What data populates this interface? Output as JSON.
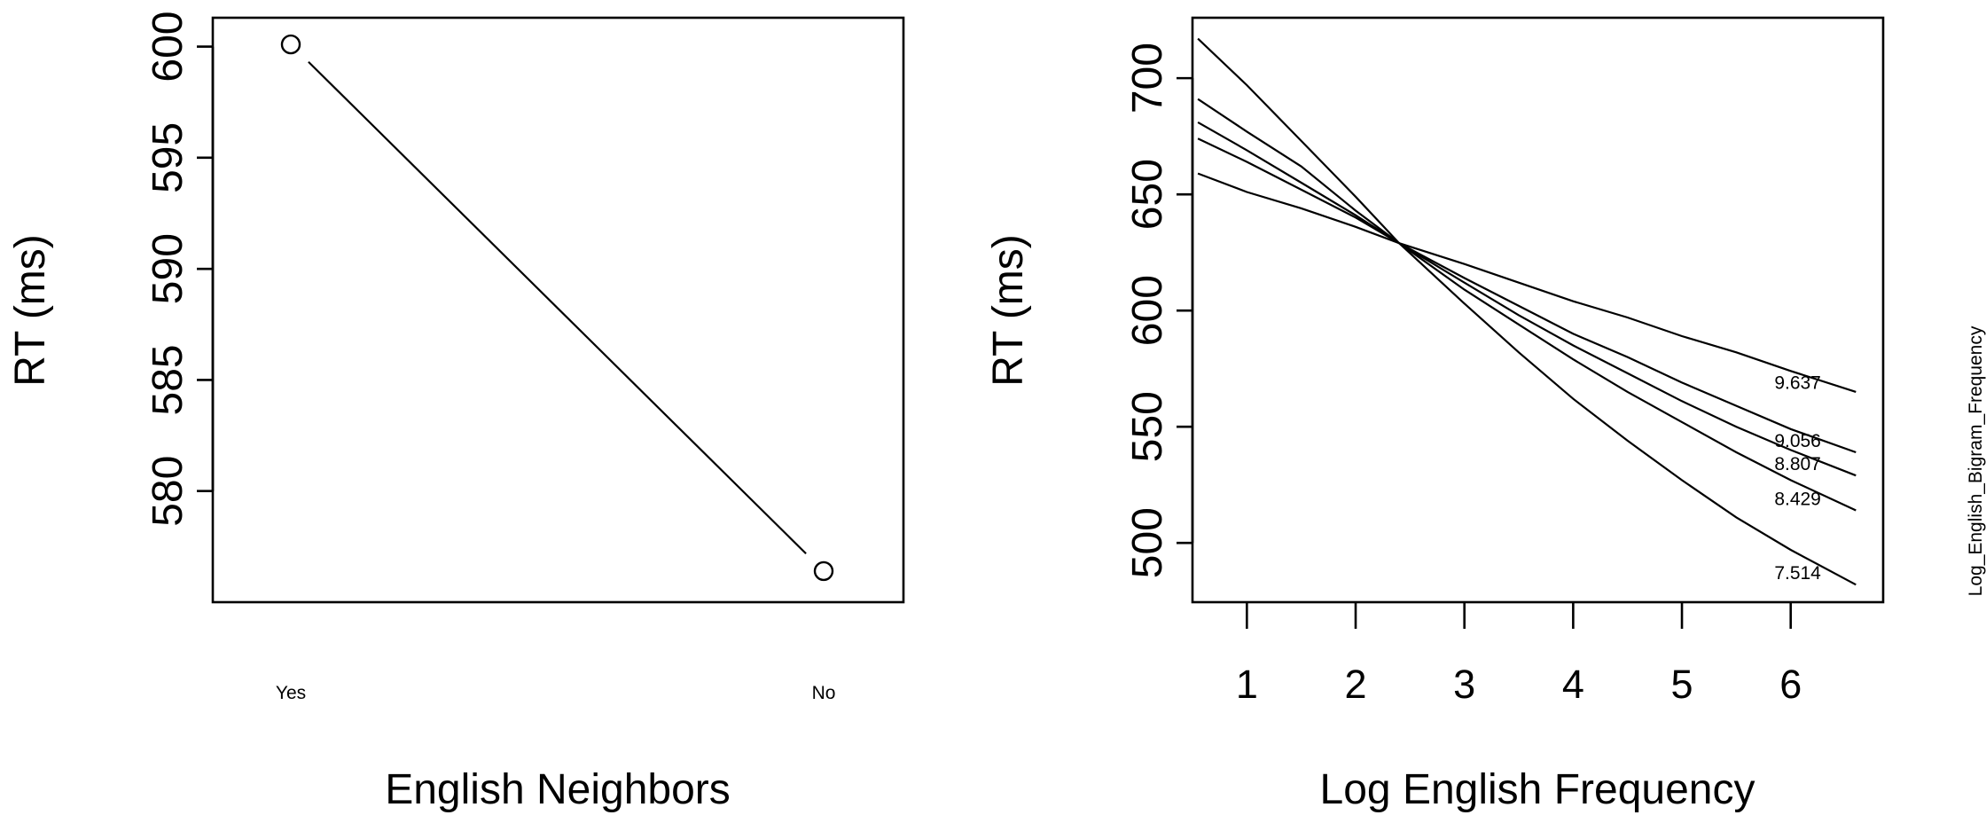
{
  "chart_data": [
    {
      "type": "line",
      "xlabel": "English Neighbors",
      "ylabel": "RT (ms)",
      "categories": [
        "Yes",
        "No"
      ],
      "values": [
        600.1,
        576.4
      ],
      "yticks": [
        580,
        585,
        590,
        595,
        600
      ],
      "ylim": [
        575.0,
        601.3
      ],
      "markers": "open-circle",
      "legend": "none",
      "grid": false
    },
    {
      "type": "line",
      "xlabel": "Log English Frequency",
      "ylabel": "RT (ms)",
      "side_label": "Log_English_Bigram_Frequency",
      "xticks": [
        1,
        2,
        3,
        4,
        5,
        6
      ],
      "yticks": [
        500,
        550,
        600,
        650,
        700
      ],
      "xlim": [
        0.5,
        6.85
      ],
      "ylim": [
        474.5,
        726
      ],
      "legend": "none",
      "grid": false,
      "series": [
        {
          "name": "7.514",
          "x": [
            0.55,
            1.0,
            1.5,
            2.0,
            2.4,
            3.0,
            3.5,
            4.0,
            4.5,
            5.0,
            5.5,
            6.0,
            6.6
          ],
          "y": [
            717,
            697,
            673,
            649,
            629,
            603,
            582,
            562,
            544,
            527,
            511,
            497,
            482
          ]
        },
        {
          "name": "8.429",
          "x": [
            0.55,
            1.0,
            1.5,
            2.0,
            2.4,
            3.0,
            3.5,
            4.0,
            4.5,
            5.0,
            5.5,
            6.0,
            6.6
          ],
          "y": [
            691,
            677,
            662,
            643,
            629,
            609,
            594,
            579,
            565,
            552,
            539,
            527,
            514
          ]
        },
        {
          "name": "8.807",
          "x": [
            0.55,
            1.0,
            1.5,
            2.0,
            2.4,
            3.0,
            3.5,
            4.0,
            4.5,
            5.0,
            5.5,
            6.0,
            6.6
          ],
          "y": [
            681,
            669,
            655,
            641,
            629,
            612,
            598,
            585,
            573,
            561,
            550,
            540,
            529
          ]
        },
        {
          "name": "9.056",
          "x": [
            0.55,
            1.0,
            1.5,
            2.0,
            2.4,
            3.0,
            3.5,
            4.0,
            4.5,
            5.0,
            5.5,
            6.0,
            6.6
          ],
          "y": [
            674,
            664,
            652,
            640,
            629,
            614,
            602,
            590,
            580,
            569,
            559,
            549,
            539
          ]
        },
        {
          "name": "9.637",
          "x": [
            0.55,
            1.0,
            1.5,
            2.0,
            2.4,
            3.0,
            3.5,
            4.0,
            4.5,
            5.0,
            5.5,
            6.0,
            6.6
          ],
          "y": [
            659,
            651,
            644,
            636,
            629,
            620,
            612,
            604,
            597,
            589,
            582,
            574,
            565
          ]
        }
      ],
      "series_labels": [
        {
          "text": "9.637",
          "x": 5.85,
          "y": 569
        },
        {
          "text": "9.056",
          "x": 5.85,
          "y": 544
        },
        {
          "text": "8.807",
          "x": 5.85,
          "y": 534
        },
        {
          "text": "8.429",
          "x": 5.85,
          "y": 519
        },
        {
          "text": "7.514",
          "x": 5.85,
          "y": 487
        }
      ]
    }
  ]
}
